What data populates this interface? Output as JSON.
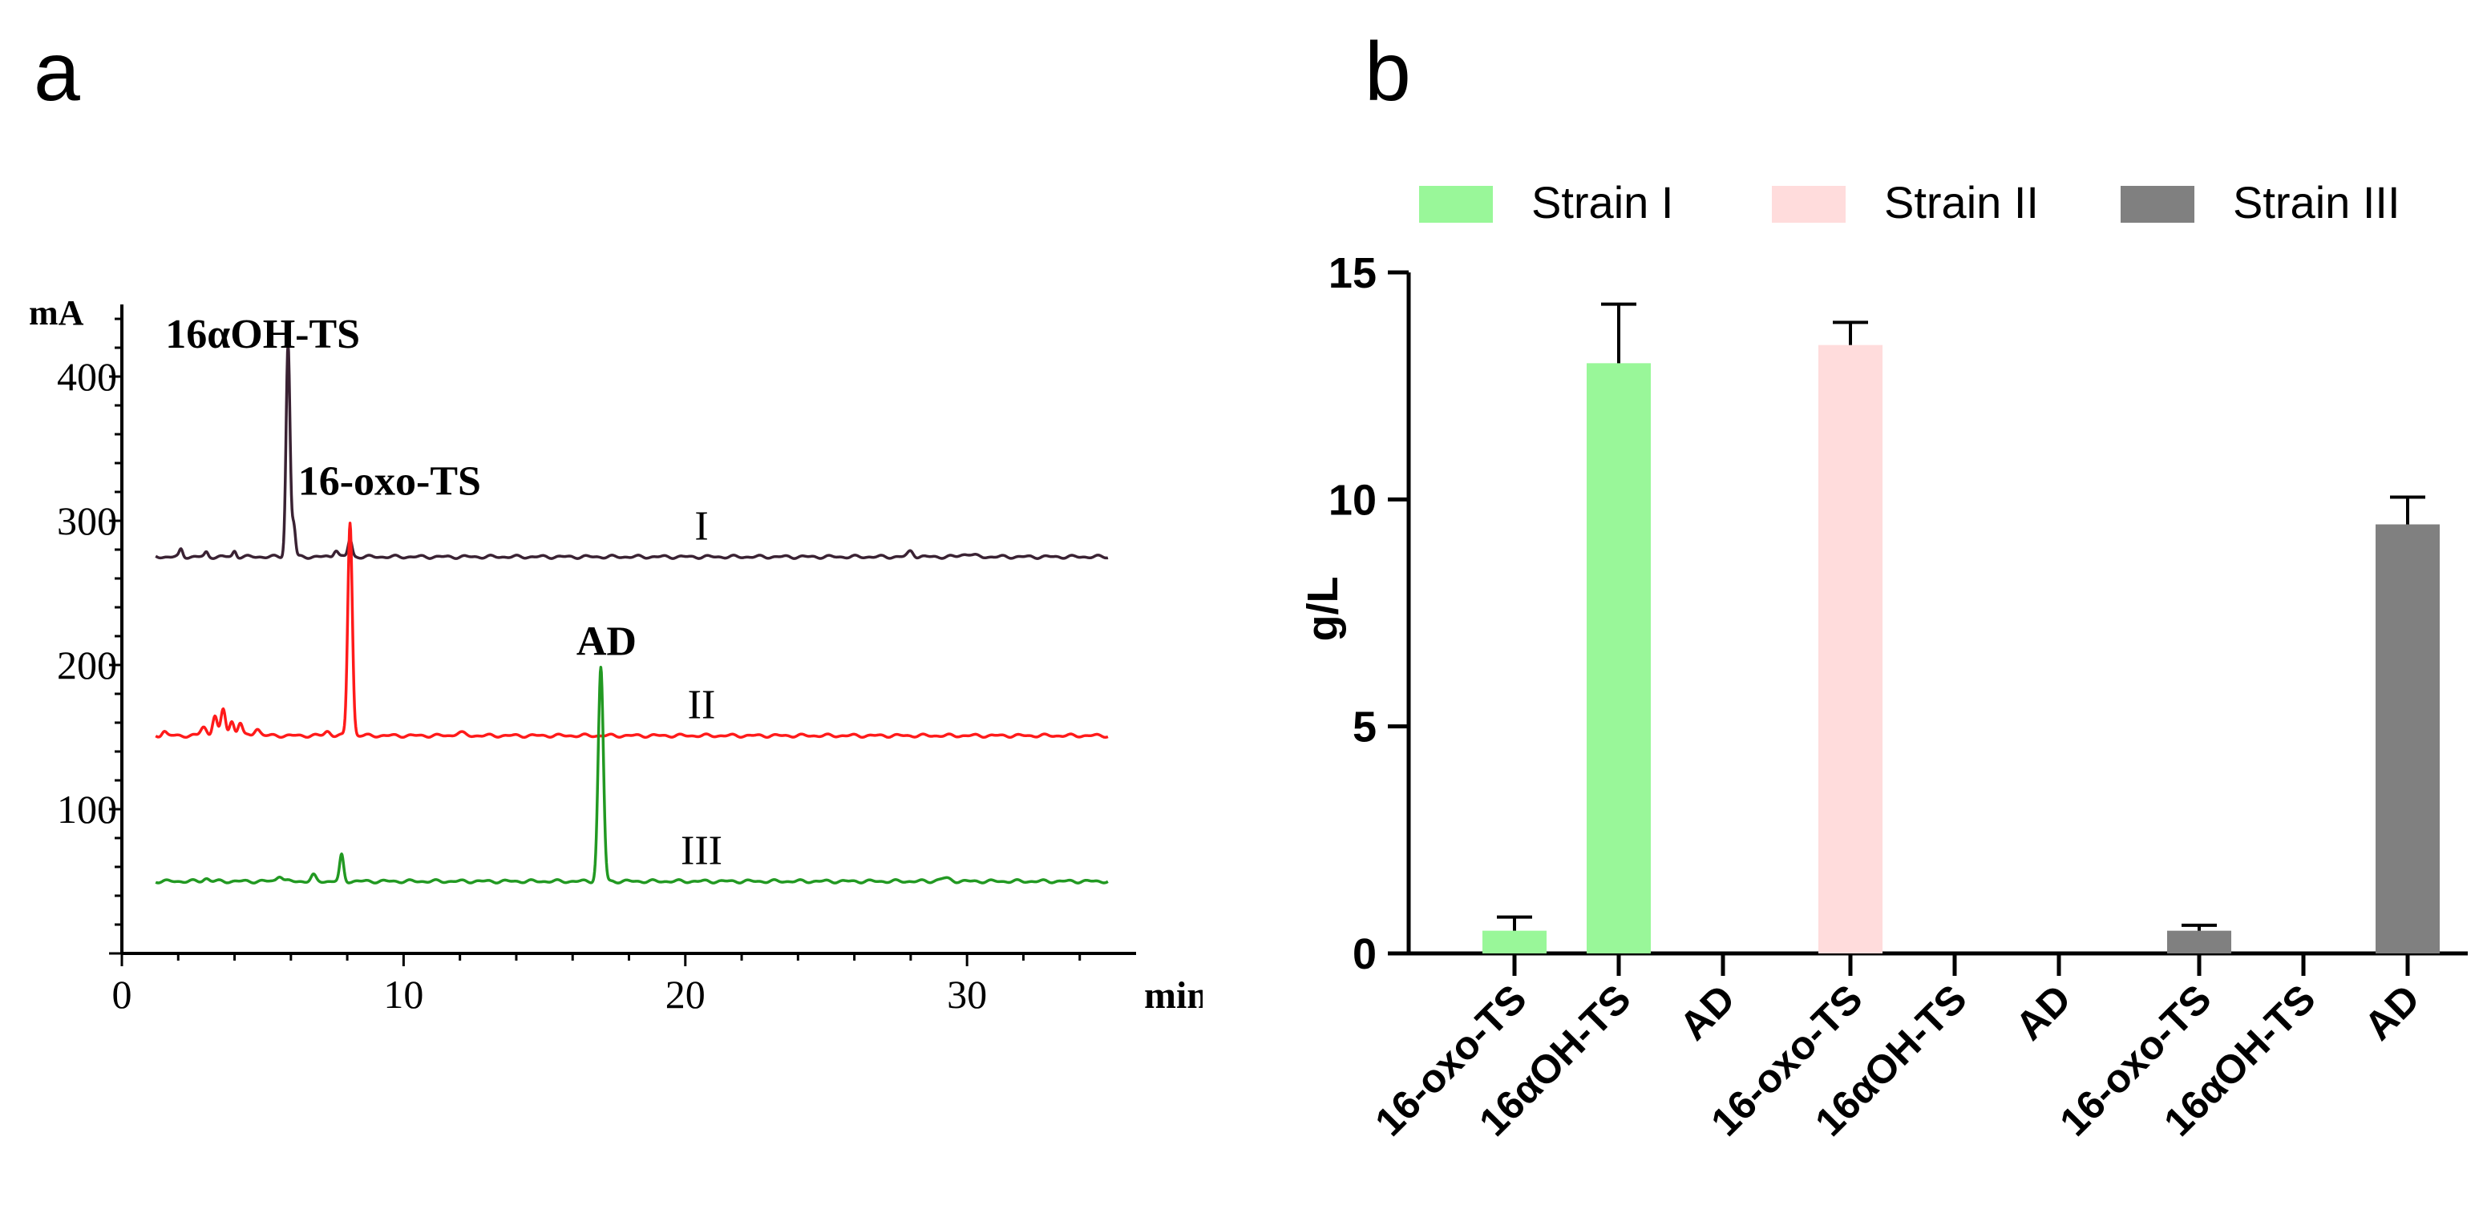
{
  "panels": {
    "a": "a",
    "b": "b"
  },
  "chart_data": [
    {
      "type": "line",
      "title": "",
      "xlabel": "min",
      "ylabel": "mA",
      "xlim": [
        0,
        36
      ],
      "ylim": [
        0,
        450
      ],
      "xticks": [
        0,
        10,
        20,
        30
      ],
      "yticks": [
        100,
        200,
        300,
        400
      ],
      "series": [
        {
          "name": "I",
          "color": "#3a2233",
          "baseline": 275,
          "peaks": [
            {
              "x": 2.1,
              "h": 5,
              "w": 0.06
            },
            {
              "x": 3.0,
              "h": 3,
              "w": 0.06
            },
            {
              "x": 4.0,
              "h": 4,
              "w": 0.06
            },
            {
              "x": 5.9,
              "h": 148,
              "w": 0.07
            },
            {
              "x": 6.1,
              "h": 22,
              "w": 0.06
            },
            {
              "x": 7.6,
              "h": 5,
              "w": 0.08
            },
            {
              "x": 8.1,
              "h": 12,
              "w": 0.07
            },
            {
              "x": 28.0,
              "h": 4,
              "w": 0.1
            },
            {
              "x": 30.0,
              "h": 2,
              "w": 0.2
            }
          ]
        },
        {
          "name": "II",
          "color": "#ff1a1a",
          "baseline": 151,
          "peaks": [
            {
              "x": 1.5,
              "h": 3,
              "w": 0.08
            },
            {
              "x": 2.9,
              "h": 6,
              "w": 0.1
            },
            {
              "x": 3.3,
              "h": 14,
              "w": 0.08
            },
            {
              "x": 3.6,
              "h": 18,
              "w": 0.08
            },
            {
              "x": 3.9,
              "h": 10,
              "w": 0.08
            },
            {
              "x": 4.2,
              "h": 9,
              "w": 0.08
            },
            {
              "x": 4.8,
              "h": 5,
              "w": 0.1
            },
            {
              "x": 7.3,
              "h": 3,
              "w": 0.1
            },
            {
              "x": 8.1,
              "h": 148,
              "w": 0.08
            },
            {
              "x": 12.0,
              "h": 2,
              "w": 0.15
            }
          ]
        },
        {
          "name": "III",
          "color": "#229922",
          "baseline": 50,
          "peaks": [
            {
              "x": 3.0,
              "h": 2,
              "w": 0.1
            },
            {
              "x": 5.6,
              "h": 4,
              "w": 0.1
            },
            {
              "x": 6.8,
              "h": 4,
              "w": 0.08
            },
            {
              "x": 7.8,
              "h": 18,
              "w": 0.07
            },
            {
              "x": 17.0,
              "h": 148,
              "w": 0.09
            },
            {
              "x": 29.2,
              "h": 2,
              "w": 0.2
            }
          ]
        }
      ],
      "annotations": [
        {
          "text": "16αOH-TS",
          "x": 5.0,
          "y": 420
        },
        {
          "text": "16-oxo-TS",
          "x": 9.5,
          "y": 318
        },
        {
          "text": "AD",
          "x": 17.2,
          "y": 207
        }
      ]
    },
    {
      "type": "bar",
      "title": "",
      "xlabel": "",
      "ylabel": "g/L",
      "ylim": [
        0,
        15
      ],
      "yticks": [
        0,
        5,
        10,
        15
      ],
      "legend_position": "top",
      "legend": [
        {
          "name": "Strain I",
          "color": "#99f799"
        },
        {
          "name": "Strain II",
          "color": "#ffdcdc"
        },
        {
          "name": "Strain III",
          "color": "#808080"
        }
      ],
      "categories": [
        "16-oxo-TS",
        "16αOH-TS",
        "AD"
      ],
      "series": [
        {
          "name": "Strain I",
          "color": "#99f799",
          "values": [
            0.5,
            13.0,
            0
          ],
          "errors": [
            0.3,
            1.3,
            0
          ]
        },
        {
          "name": "Strain II",
          "color": "#ffdcdc",
          "values": [
            13.4,
            0,
            0
          ],
          "errors": [
            0.5,
            0,
            0
          ]
        },
        {
          "name": "Strain III",
          "color": "#808080",
          "values": [
            0.5,
            0,
            9.45
          ],
          "errors": [
            0.12,
            0,
            0.6
          ]
        }
      ]
    }
  ]
}
